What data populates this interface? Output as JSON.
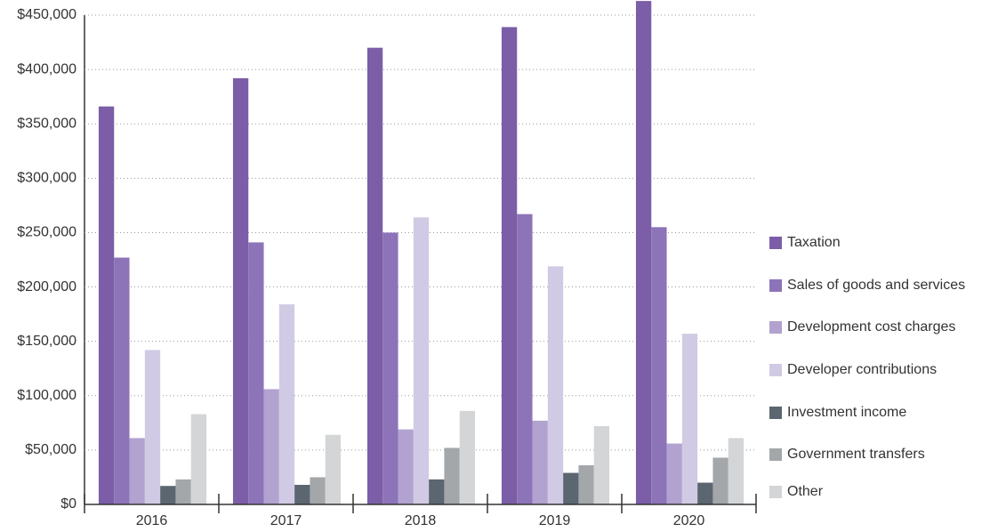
{
  "chart_data": {
    "type": "bar",
    "categories": [
      "2016",
      "2017",
      "2018",
      "2019",
      "2020"
    ],
    "series": [
      {
        "name": "Taxation",
        "color": "#7b5ea7",
        "values": [
          366000,
          392000,
          420000,
          439000,
          463000
        ]
      },
      {
        "name": "Sales of goods and services",
        "color": "#8d74b8",
        "values": [
          227000,
          241000,
          250000,
          267000,
          255000
        ]
      },
      {
        "name": "Development cost charges",
        "color": "#b1a2cf",
        "values": [
          61000,
          106000,
          69000,
          77000,
          56000
        ]
      },
      {
        "name": "Developer contributions",
        "color": "#d1cae4",
        "values": [
          142000,
          184000,
          264000,
          219000,
          157000
        ]
      },
      {
        "name": "Investment income",
        "color": "#5b6670",
        "values": [
          17000,
          18000,
          23000,
          29000,
          20000
        ]
      },
      {
        "name": "Government transfers",
        "color": "#a3a7aa",
        "values": [
          23000,
          25000,
          52000,
          36000,
          43000
        ]
      },
      {
        "name": "Other",
        "color": "#d3d5d6",
        "values": [
          83000,
          64000,
          86000,
          72000,
          61000
        ]
      }
    ],
    "ylim": [
      0,
      450000
    ],
    "yticks": [
      {
        "value": 0,
        "label": "$0"
      },
      {
        "value": 50000,
        "label": "$50,000"
      },
      {
        "value": 100000,
        "label": "$100,000"
      },
      {
        "value": 150000,
        "label": "$150,000"
      },
      {
        "value": 200000,
        "label": "$200,000"
      },
      {
        "value": 250000,
        "label": "$250,000"
      },
      {
        "value": 300000,
        "label": "$300,000"
      },
      {
        "value": 350000,
        "label": "$350,000"
      },
      {
        "value": 400000,
        "label": "$400,000"
      },
      {
        "value": 450000,
        "label": "$450,000"
      }
    ],
    "grid": true,
    "legend": "right"
  }
}
